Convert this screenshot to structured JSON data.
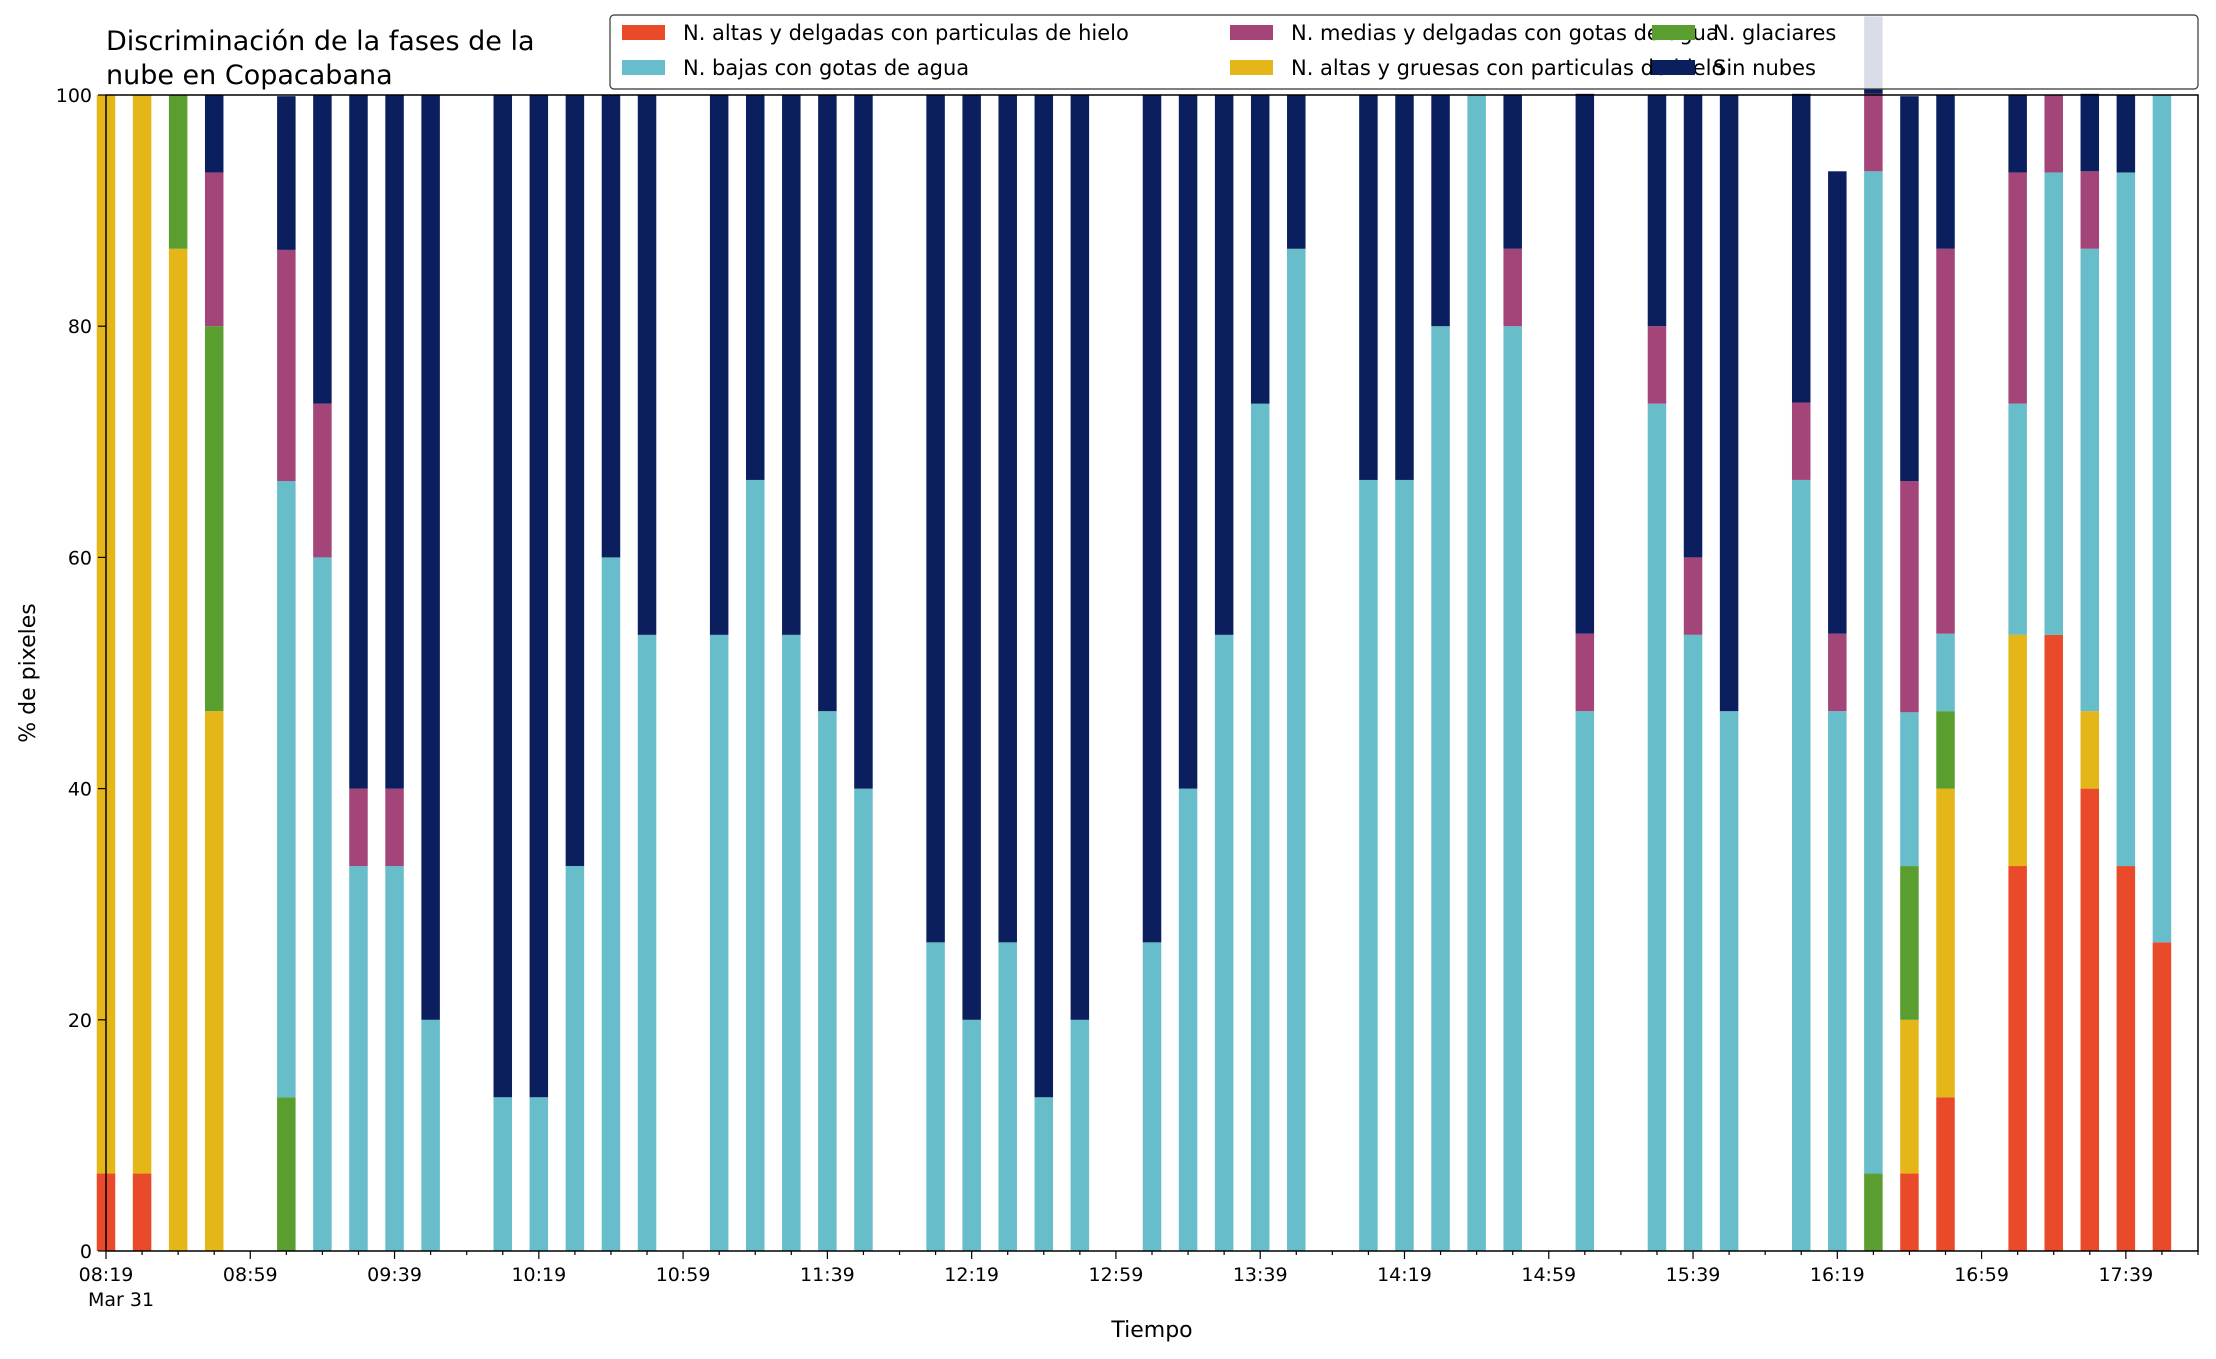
{
  "chart_data": {
    "type": "bar",
    "stacked": true,
    "title": "Discriminación de la fases de la\nnube en Copacabana",
    "xlabel": "Tiempo",
    "ylabel": "% de pixeles",
    "ylim": [
      0,
      100
    ],
    "yticks": [
      0,
      20,
      40,
      60,
      80,
      100
    ],
    "grid": false,
    "legend_position": "top-right",
    "legend_columns": 3,
    "x_start": "08:19",
    "x_end": "17:59",
    "x_tick_labels": [
      "08:19",
      "08:59",
      "09:39",
      "10:19",
      "10:59",
      "11:39",
      "12:19",
      "12:59",
      "13:39",
      "14:19",
      "14:59",
      "15:39",
      "16:19",
      "16:59",
      "17:39"
    ],
    "x_date_label": "Mar 31",
    "categories": [
      "08:19",
      "08:29",
      "08:39",
      "08:49",
      "09:09",
      "09:19",
      "09:29",
      "09:39",
      "09:49",
      "10:09",
      "10:19",
      "10:29",
      "10:39",
      "10:49",
      "11:09",
      "11:19",
      "11:29",
      "11:39",
      "11:49",
      "12:09",
      "12:19",
      "12:29",
      "12:39",
      "12:49",
      "13:09",
      "13:19",
      "13:29",
      "13:39",
      "13:49",
      "14:09",
      "14:19",
      "14:29",
      "14:39",
      "14:49",
      "15:09",
      "15:29",
      "15:39",
      "15:49",
      "16:09",
      "16:19",
      "16:29",
      "16:39",
      "16:49",
      "17:09",
      "17:19",
      "17:29",
      "17:39",
      "17:49"
    ],
    "series": [
      {
        "name": "N. altas y delgadas con particulas de hielo",
        "color": "#e84a2a",
        "values": [
          6.7,
          6.7,
          0,
          0,
          0,
          0,
          0,
          0,
          0,
          0,
          0,
          0,
          0,
          0,
          0,
          0,
          0,
          0,
          0,
          0,
          0,
          0,
          0,
          0,
          0,
          0,
          0,
          0,
          0,
          0,
          0,
          0,
          0,
          0,
          0,
          0,
          0,
          0,
          0,
          0,
          0,
          6.7,
          13.3,
          33.3,
          53.3,
          40,
          33.3,
          26.7
        ]
      },
      {
        "name": "N. altas y gruesas con particulas de hielo",
        "color": "#e4b618",
        "values": [
          93.3,
          93.3,
          86.7,
          46.7,
          0,
          0,
          0,
          0,
          0,
          0,
          0,
          0,
          0,
          0,
          0,
          0,
          0,
          0,
          0,
          0,
          0,
          0,
          0,
          0,
          0,
          0,
          0,
          0,
          0,
          0,
          0,
          0,
          0,
          0,
          0,
          0,
          0,
          0,
          0,
          0,
          0,
          13.3,
          26.7,
          20,
          0,
          6.7,
          0,
          0
        ]
      },
      {
        "name": "N. glaciares",
        "color": "#5a9e2f",
        "values": [
          0,
          0,
          13.3,
          33.3,
          13.3,
          0,
          0,
          0,
          0,
          0,
          0,
          0,
          0,
          0,
          0,
          0,
          0,
          0,
          0,
          0,
          0,
          0,
          0,
          0,
          0,
          0,
          0,
          0,
          0,
          0,
          0,
          0,
          0,
          0,
          0,
          0,
          0,
          0,
          0,
          0,
          6.7,
          13.3,
          6.7,
          0,
          0,
          0,
          0,
          0
        ]
      },
      {
        "name": "N. bajas con gotas de agua",
        "color": "#67bdc9",
        "values": [
          0,
          0,
          0,
          0,
          53.3,
          60,
          33.3,
          33.3,
          20,
          13.3,
          13.3,
          33.3,
          60,
          53.3,
          53.3,
          66.7,
          53.3,
          46.7,
          40,
          26.7,
          20,
          26.7,
          13.3,
          20,
          26.7,
          40,
          53.3,
          73.3,
          86.7,
          66.7,
          66.7,
          80,
          100,
          80,
          46.7,
          73.3,
          53.3,
          46.7,
          66.7,
          46.7,
          86.7,
          13.3,
          6.7,
          20,
          40,
          40,
          60,
          73.3
        ]
      },
      {
        "name": "N. medias y delgadas con gotas de agua",
        "color": "#a4457a",
        "values": [
          0,
          0,
          0,
          13.3,
          20,
          13.3,
          6.7,
          6.7,
          0,
          0,
          0,
          0,
          0,
          0,
          0,
          0,
          0,
          0,
          0,
          0,
          0,
          0,
          0,
          0,
          0,
          0,
          0,
          0,
          0,
          0,
          0,
          0,
          0,
          6.7,
          6.7,
          6.7,
          6.7,
          0,
          6.7,
          6.7,
          6.7,
          20,
          33.3,
          20,
          6.7,
          6.7,
          0,
          0
        ]
      },
      {
        "name": "Sin nubes",
        "color": "#0b1f5e",
        "values": [
          0,
          0,
          0,
          6.7,
          13.3,
          26.7,
          60,
          60,
          80,
          86.7,
          86.7,
          66.7,
          40,
          46.7,
          46.7,
          33.3,
          46.7,
          53.3,
          60,
          73.3,
          80,
          73.3,
          86.7,
          80,
          73.3,
          60,
          46.7,
          26.7,
          13.3,
          33.3,
          33.3,
          20,
          0,
          13.3,
          46.7,
          20,
          40,
          53.3,
          26.7,
          40,
          6.7,
          33.3,
          13.3,
          6.7,
          0,
          6.7,
          6.7,
          0
        ]
      }
    ]
  }
}
